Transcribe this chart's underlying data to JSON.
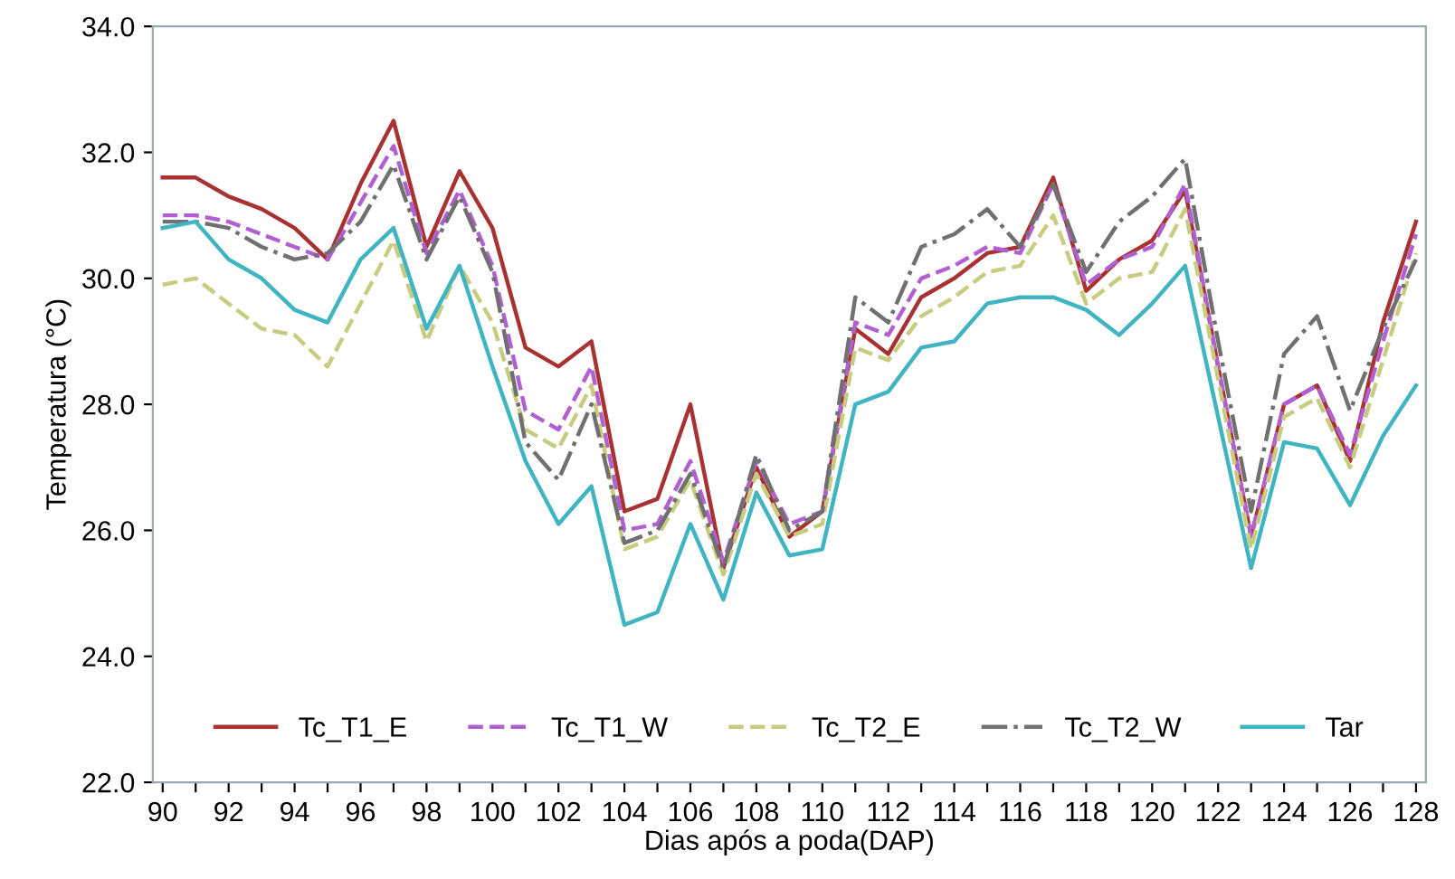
{
  "chart_data": {
    "type": "line",
    "xlabel": "Dias após a poda(DAP)",
    "ylabel": "Temperatura (°C)",
    "categories": [
      "90",
      null,
      "92",
      null,
      "94",
      null,
      "96",
      null,
      "98",
      null,
      "100",
      null,
      "102",
      null,
      "104",
      null,
      "106",
      null,
      "108",
      null,
      "110",
      null,
      "112",
      null,
      "114",
      null,
      "116",
      null,
      "118",
      null,
      "120",
      null,
      "122",
      null,
      "124",
      null,
      "126",
      null,
      "128"
    ],
    "ylim": [
      22,
      34
    ],
    "yticks": [
      {
        "value": 22,
        "label": "22.0"
      },
      {
        "value": 24,
        "label": "24.0"
      },
      {
        "value": 26,
        "label": "26.0"
      },
      {
        "value": 28,
        "label": "28.0"
      },
      {
        "value": 30,
        "label": "30.0"
      },
      {
        "value": 32,
        "label": "32.0"
      },
      {
        "value": 34,
        "label": "34.0"
      }
    ],
    "legend": "bottom",
    "grid": false,
    "series": [
      {
        "name": "Tc_T1_E",
        "color": "#a83232",
        "line_style": "solid",
        "values": [
          31.6,
          31.6,
          31.3,
          31.1,
          30.8,
          30.3,
          31.5,
          32.5,
          30.5,
          31.7,
          30.8,
          28.9,
          28.6,
          29.0,
          26.3,
          26.5,
          28.0,
          25.4,
          27.0,
          25.9,
          26.3,
          29.2,
          28.8,
          29.7,
          30.0,
          30.4,
          30.5,
          31.6,
          29.8,
          30.3,
          30.6,
          31.4,
          28.6,
          25.9,
          28.0,
          28.3,
          27.1,
          29.3,
          30.9
        ]
      },
      {
        "name": "Tc_T1_W",
        "color": "#b060d0",
        "line_style": "dashed",
        "values": [
          31.0,
          31.0,
          30.9,
          30.7,
          30.5,
          30.3,
          31.2,
          32.1,
          30.4,
          31.4,
          30.2,
          27.9,
          27.6,
          28.6,
          26.0,
          26.1,
          27.1,
          25.5,
          27.1,
          26.1,
          26.3,
          29.3,
          29.1,
          30.0,
          30.2,
          30.5,
          30.4,
          31.5,
          29.9,
          30.3,
          30.5,
          31.5,
          28.6,
          25.9,
          28.0,
          28.3,
          27.2,
          29.0,
          30.7
        ]
      },
      {
        "name": "Tc_T2_E",
        "color": "#c8cc80",
        "line_style": "dashed",
        "values": [
          29.9,
          30.0,
          29.6,
          29.2,
          29.1,
          28.6,
          29.6,
          30.6,
          29.0,
          30.2,
          29.3,
          27.6,
          27.3,
          28.3,
          25.7,
          25.9,
          26.8,
          25.3,
          26.9,
          25.9,
          26.1,
          28.9,
          28.7,
          29.4,
          29.7,
          30.1,
          30.2,
          31.0,
          29.6,
          30.0,
          30.1,
          31.1,
          28.4,
          25.7,
          27.8,
          28.1,
          27.0,
          28.7,
          30.4
        ]
      },
      {
        "name": "Tc_T2_W",
        "color": "#707070",
        "line_style": "dashdot",
        "values": [
          30.9,
          30.9,
          30.8,
          30.5,
          30.3,
          30.4,
          30.9,
          31.8,
          30.3,
          31.3,
          30.1,
          27.4,
          26.8,
          28.0,
          25.8,
          26.0,
          26.9,
          25.4,
          27.2,
          26.0,
          26.3,
          29.7,
          29.3,
          30.5,
          30.7,
          31.1,
          30.5,
          31.5,
          30.1,
          30.9,
          31.3,
          31.9,
          29.0,
          26.3,
          28.8,
          29.4,
          27.9,
          29.2,
          30.3
        ]
      },
      {
        "name": "Tar",
        "color": "#40b4c0",
        "line_style": "solid",
        "values": [
          30.8,
          30.9,
          30.3,
          30.0,
          29.5,
          29.3,
          30.3,
          30.8,
          29.2,
          30.2,
          28.6,
          27.1,
          26.1,
          26.7,
          24.5,
          24.7,
          26.1,
          24.9,
          26.6,
          25.6,
          25.7,
          28.0,
          28.2,
          28.9,
          29.0,
          29.6,
          29.7,
          29.7,
          29.5,
          29.1,
          29.6,
          30.2,
          27.8,
          25.4,
          27.4,
          27.3,
          26.4,
          27.5,
          28.3
        ]
      }
    ]
  }
}
